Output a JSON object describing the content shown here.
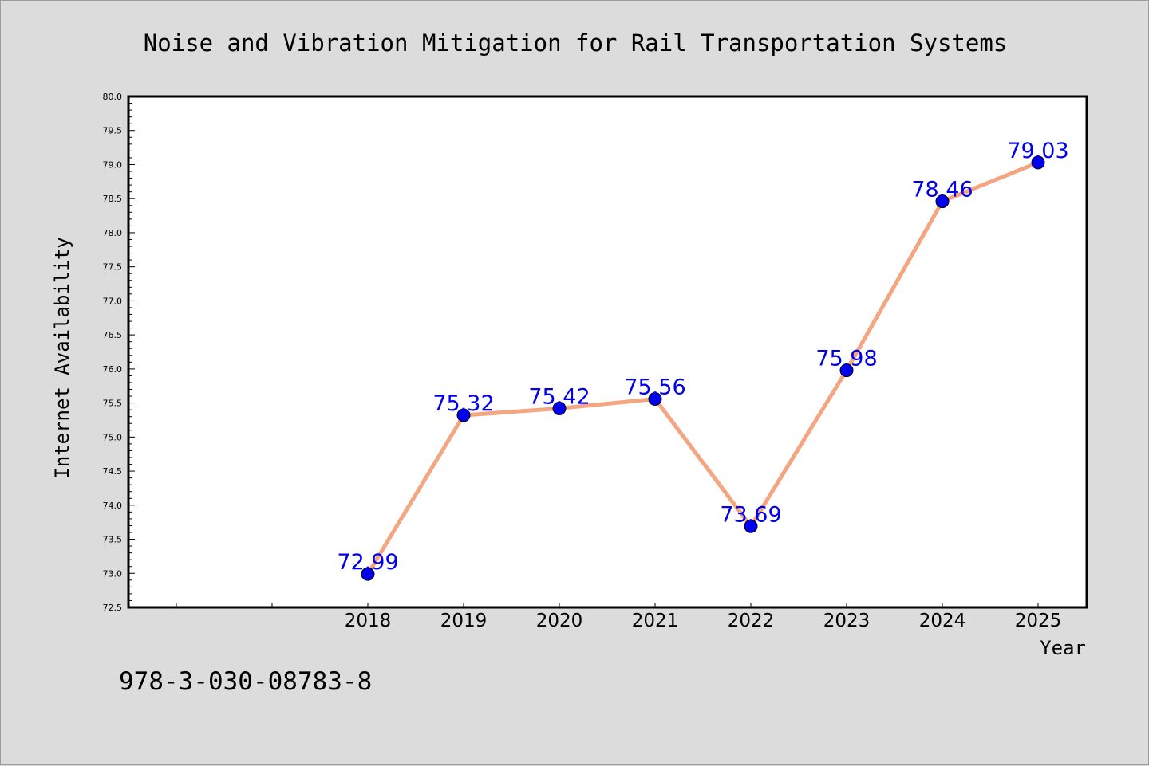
{
  "chart_data": {
    "type": "line",
    "title": "Noise and Vibration Mitigation for Rail Transportation Systems",
    "xlabel": "Year",
    "ylabel": "Internet Availability",
    "categories": [
      "2018",
      "2019",
      "2020",
      "2021",
      "2022",
      "2023",
      "2024",
      "2025"
    ],
    "series": [
      {
        "values": [
          72.99,
          75.32,
          75.42,
          75.56,
          73.69,
          75.98,
          78.46,
          79.03
        ]
      }
    ],
    "data_labels": [
      "72.99",
      "75.32",
      "75.42",
      "75.56",
      "73.69",
      "75.98",
      "78.46",
      "79.03"
    ],
    "ylim": [
      72.5,
      80.0
    ],
    "y_ticks": [
      "72.5",
      "73.0",
      "73.5",
      "74.0",
      "74.5",
      "75.0",
      "75.5",
      "76.0",
      "76.5",
      "77.0",
      "77.5",
      "78.0",
      "78.5",
      "79.0",
      "79.5",
      "80.0"
    ],
    "grid": false,
    "legend": "none",
    "colors": {
      "line": "#f4a582",
      "marker": "#0000ee",
      "label": "#0000ee"
    }
  },
  "footer_text": "978-3-030-08783-8"
}
